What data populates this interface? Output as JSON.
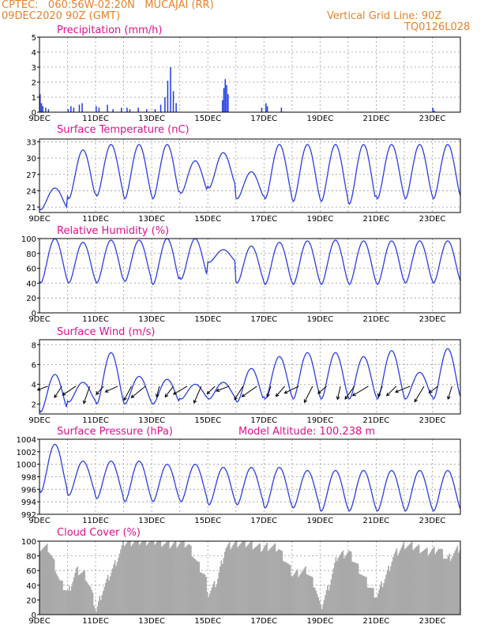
{
  "header": {
    "line1": "CPTEC:   060:56W-02:20N   MUCAJAI (RR)",
    "line2": "09DEC2020 90Z (GMT)",
    "grid_line": "Vertical Grid Line: 90Z",
    "code": "TQ0126L028",
    "color": "#e8822a"
  },
  "colors": {
    "series": "#2b3fe0",
    "bars_precip": "#1f3be8",
    "bars_cloud": "#a9a9a9",
    "title": "#e0108a"
  },
  "chart_data": [
    {
      "id": "precip",
      "type": "bar",
      "title": "Precipitation (mm/h)",
      "ylim": [
        0,
        5
      ],
      "yticks": [
        0,
        1,
        2,
        3,
        4,
        5
      ],
      "xlim_days": [
        9,
        24
      ],
      "xticks": [
        "9DEC",
        "11DEC",
        "13DEC",
        "15DEC",
        "17DEC",
        "19DEC",
        "21DEC",
        "23DEC"
      ],
      "grid": true,
      "values_t_day": [
        [
          9.0,
          1.2
        ],
        [
          9.05,
          0.6
        ],
        [
          9.1,
          0.4
        ],
        [
          9.2,
          0.3
        ],
        [
          9.3,
          0.2
        ],
        [
          10.0,
          0.2
        ],
        [
          10.1,
          0.4
        ],
        [
          10.2,
          0.3
        ],
        [
          10.4,
          0.5
        ],
        [
          10.5,
          0.6
        ],
        [
          11.0,
          0.4
        ],
        [
          11.1,
          0.3
        ],
        [
          11.4,
          0.5
        ],
        [
          11.6,
          0.2
        ],
        [
          11.9,
          0.3
        ],
        [
          12.1,
          0.3
        ],
        [
          12.2,
          0.2
        ],
        [
          12.5,
          0.3
        ],
        [
          12.8,
          0.2
        ],
        [
          13.1,
          0.2
        ],
        [
          13.3,
          0.5
        ],
        [
          13.45,
          1.0
        ],
        [
          13.55,
          2.1
        ],
        [
          13.65,
          3.0
        ],
        [
          13.75,
          1.4
        ],
        [
          13.85,
          0.6
        ],
        [
          15.5,
          0.8
        ],
        [
          15.55,
          1.6
        ],
        [
          15.6,
          2.2
        ],
        [
          15.65,
          1.8
        ],
        [
          15.7,
          1.2
        ],
        [
          16.9,
          0.3
        ],
        [
          17.05,
          0.6
        ],
        [
          17.1,
          0.4
        ],
        [
          17.6,
          0.3
        ],
        [
          23.0,
          0.3
        ],
        [
          23.05,
          0.1
        ]
      ]
    },
    {
      "id": "temp",
      "type": "line",
      "title": "Surface Temperature (nC)",
      "ylim": [
        20,
        33.5
      ],
      "yticks": [
        21,
        24,
        27,
        30,
        33
      ],
      "xlim_days": [
        9,
        24
      ],
      "xticks": [
        "9DEC",
        "11DEC",
        "13DEC",
        "15DEC",
        "17DEC",
        "19DEC",
        "21DEC",
        "23DEC"
      ],
      "grid": true,
      "daily_max": [
        24.5,
        31.5,
        32.5,
        32.5,
        32.5,
        29.5,
        31.0,
        27.5,
        32.5,
        32.5,
        32.5,
        32.5,
        32.5,
        32.5,
        32.5
      ],
      "daily_min": [
        20.5,
        22.5,
        23.0,
        22.5,
        22.5,
        23.5,
        24.5,
        22.5,
        22.5,
        22.0,
        22.0,
        21.5,
        22.5,
        22.5,
        22.5
      ],
      "end_value": 29.0
    },
    {
      "id": "rh",
      "type": "line",
      "title": "Relative Humidity (%)",
      "ylim": [
        0,
        100
      ],
      "yticks": [
        0,
        20,
        40,
        60,
        80,
        100
      ],
      "xlim_days": [
        9,
        24
      ],
      "xticks": [
        "9DEC",
        "11DEC",
        "13DEC",
        "15DEC",
        "17DEC",
        "19DEC",
        "21DEC",
        "23DEC"
      ],
      "grid": true,
      "daily_max": [
        100,
        95,
        98,
        98,
        100,
        100,
        85,
        90,
        95,
        97,
        98,
        97,
        97,
        97,
        97
      ],
      "daily_min": [
        40,
        40,
        40,
        42,
        38,
        45,
        68,
        40,
        38,
        38,
        38,
        38,
        38,
        40,
        40
      ],
      "end_value": 50
    },
    {
      "id": "wind",
      "type": "line",
      "title": "Surface Wind (m/s)",
      "ylim": [
        1,
        8.5
      ],
      "yticks": [
        2,
        4,
        6,
        8
      ],
      "xlim_days": [
        9,
        24
      ],
      "xticks": [
        "9DEC",
        "11DEC",
        "13DEC",
        "15DEC",
        "17DEC",
        "19DEC",
        "21DEC",
        "23DEC"
      ],
      "grid": true,
      "daily_max": [
        5.0,
        4.2,
        7.2,
        4.8,
        4.5,
        4.0,
        4.2,
        5.6,
        6.8,
        7.2,
        7.2,
        6.8,
        7.4,
        5.2,
        7.6
      ],
      "daily_min": [
        1.2,
        2.2,
        2.0,
        2.0,
        2.0,
        2.5,
        2.5,
        2.2,
        2.5,
        2.5,
        2.5,
        2.5,
        2.5,
        2.5,
        2.5
      ],
      "barbs_count": 30
    },
    {
      "id": "pres",
      "type": "line",
      "title": "Surface Pressure (hPa)",
      "subtitle": "Model Altitude: 100.238 m",
      "ylim": [
        992,
        1004
      ],
      "yticks": [
        992,
        994,
        996,
        998,
        1000,
        1002,
        1004
      ],
      "xlim_days": [
        9,
        24
      ],
      "xticks": [
        "9DEC",
        "11DEC",
        "13DEC",
        "15DEC",
        "17DEC",
        "19DEC",
        "21DEC",
        "23DEC"
      ],
      "grid": true,
      "daily_max": [
        1003.2,
        1000.5,
        1000.5,
        1000.5,
        1000.0,
        1000.0,
        999.5,
        999.5,
        999.5,
        999.0,
        999.0,
        999.0,
        999.0,
        999.0,
        999.0
      ],
      "daily_min": [
        995.5,
        995.0,
        994.5,
        994.0,
        994.0,
        994.0,
        993.5,
        993.5,
        993.0,
        993.0,
        992.5,
        992.5,
        992.5,
        992.5,
        992.5
      ],
      "end_value": 995.0
    },
    {
      "id": "cloud",
      "type": "area",
      "title": "Cloud Cover (%)",
      "ylim": [
        0,
        100
      ],
      "yticks": [
        0,
        20,
        40,
        60,
        80,
        100
      ],
      "xlim_days": [
        9,
        24
      ],
      "xticks": [
        "9DEC",
        "11DEC",
        "13DEC",
        "15DEC",
        "17DEC",
        "19DEC",
        "21DEC",
        "23DEC"
      ],
      "grid": true,
      "knots_t_day_value": [
        [
          9.0,
          92
        ],
        [
          9.3,
          90
        ],
        [
          9.5,
          70
        ],
        [
          9.7,
          45
        ],
        [
          10.0,
          30
        ],
        [
          10.3,
          60
        ],
        [
          10.6,
          55
        ],
        [
          10.8,
          35
        ],
        [
          11.0,
          5
        ],
        [
          11.2,
          30
        ],
        [
          11.5,
          55
        ],
        [
          11.8,
          80
        ],
        [
          12.0,
          98
        ],
        [
          12.4,
          100
        ],
        [
          12.8,
          100
        ],
        [
          13.2,
          100
        ],
        [
          13.6,
          95
        ],
        [
          14.0,
          98
        ],
        [
          14.3,
          95
        ],
        [
          14.6,
          70
        ],
        [
          14.9,
          50
        ],
        [
          15.0,
          28
        ],
        [
          15.3,
          45
        ],
        [
          15.6,
          90
        ],
        [
          16.0,
          98
        ],
        [
          16.5,
          96
        ],
        [
          16.9,
          90
        ],
        [
          17.1,
          93
        ],
        [
          17.5,
          90
        ],
        [
          17.8,
          70
        ],
        [
          18.0,
          55
        ],
        [
          18.5,
          60
        ],
        [
          18.8,
          40
        ],
        [
          19.0,
          8
        ],
        [
          19.3,
          40
        ],
        [
          19.6,
          80
        ],
        [
          20.0,
          85
        ],
        [
          20.4,
          60
        ],
        [
          20.7,
          40
        ],
        [
          21.0,
          25
        ],
        [
          21.3,
          50
        ],
        [
          21.6,
          80
        ],
        [
          22.0,
          95
        ],
        [
          22.4,
          92
        ],
        [
          22.8,
          85
        ],
        [
          23.2,
          90
        ],
        [
          23.5,
          75
        ],
        [
          24.0,
          92
        ]
      ]
    }
  ]
}
